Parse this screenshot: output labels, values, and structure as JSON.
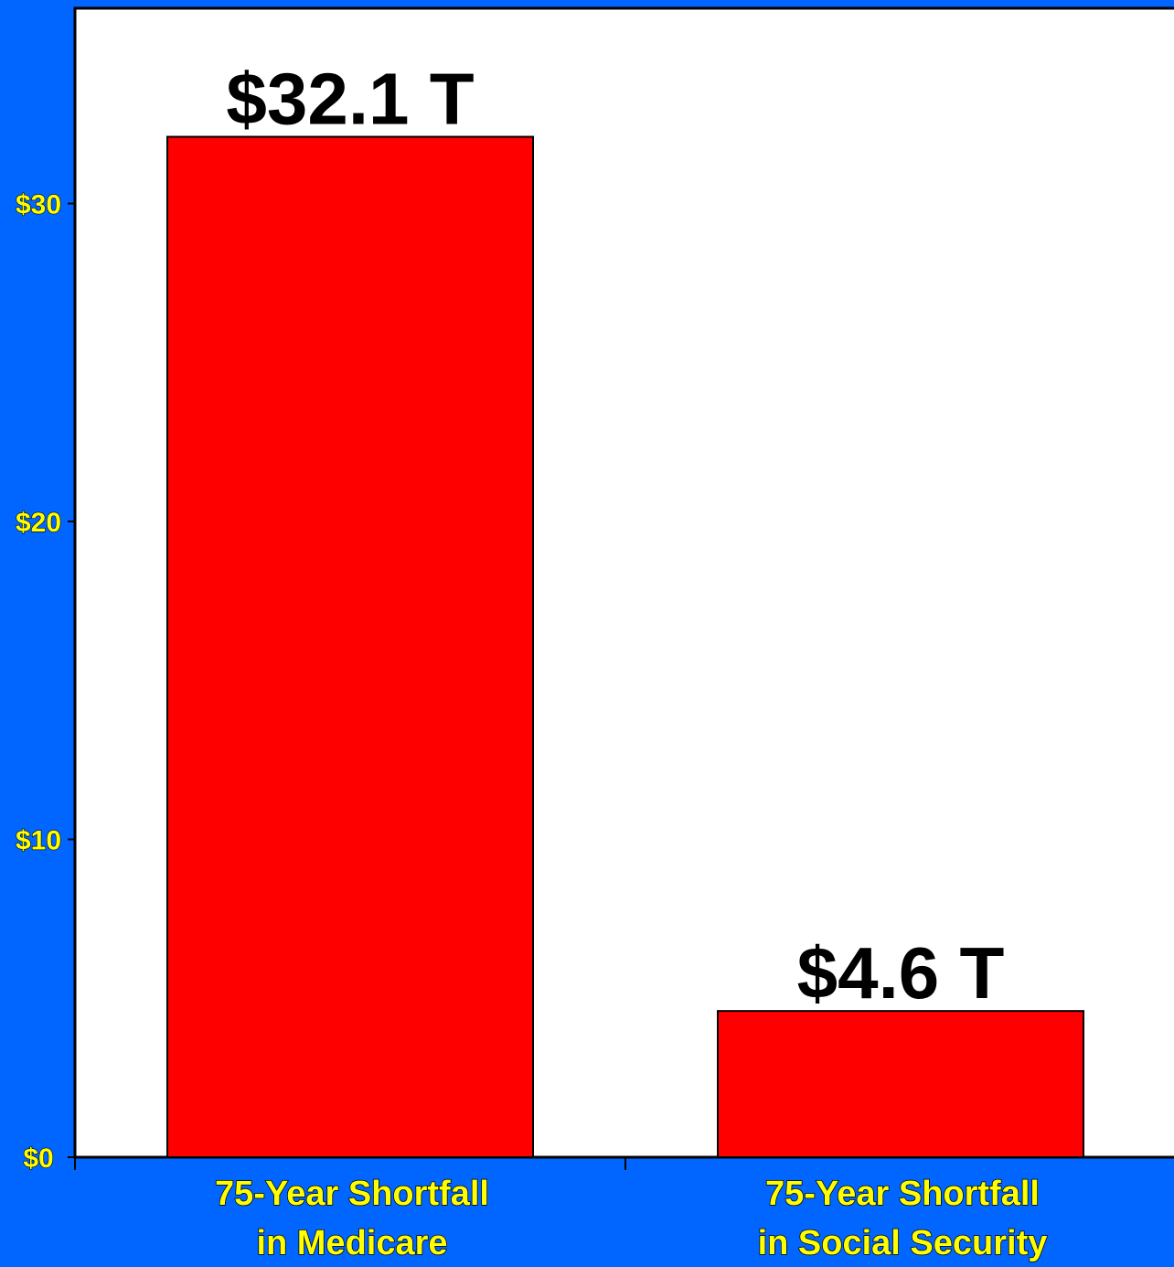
{
  "colors": {
    "background": "#0066ff",
    "plot_area": "#ffffff",
    "bar_fill": "#ff0000",
    "tick_label": "#ffff00",
    "category_label": "#ffff00",
    "data_label": "#000000"
  },
  "chart_data": {
    "type": "bar",
    "categories": [
      [
        "75-Year Shortfall",
        "in Medicare"
      ],
      [
        "75-Year Shortfall",
        "in Social Security"
      ]
    ],
    "values": [
      32.1,
      4.6
    ],
    "data_labels": [
      "$32.1 T",
      "$4.6 T"
    ],
    "ylim": [
      0,
      36
    ],
    "yticks": [
      0,
      10,
      20,
      30
    ],
    "ytick_labels": [
      "$0",
      "$10",
      "$20",
      "$30"
    ],
    "grid": false,
    "legend": "none"
  }
}
